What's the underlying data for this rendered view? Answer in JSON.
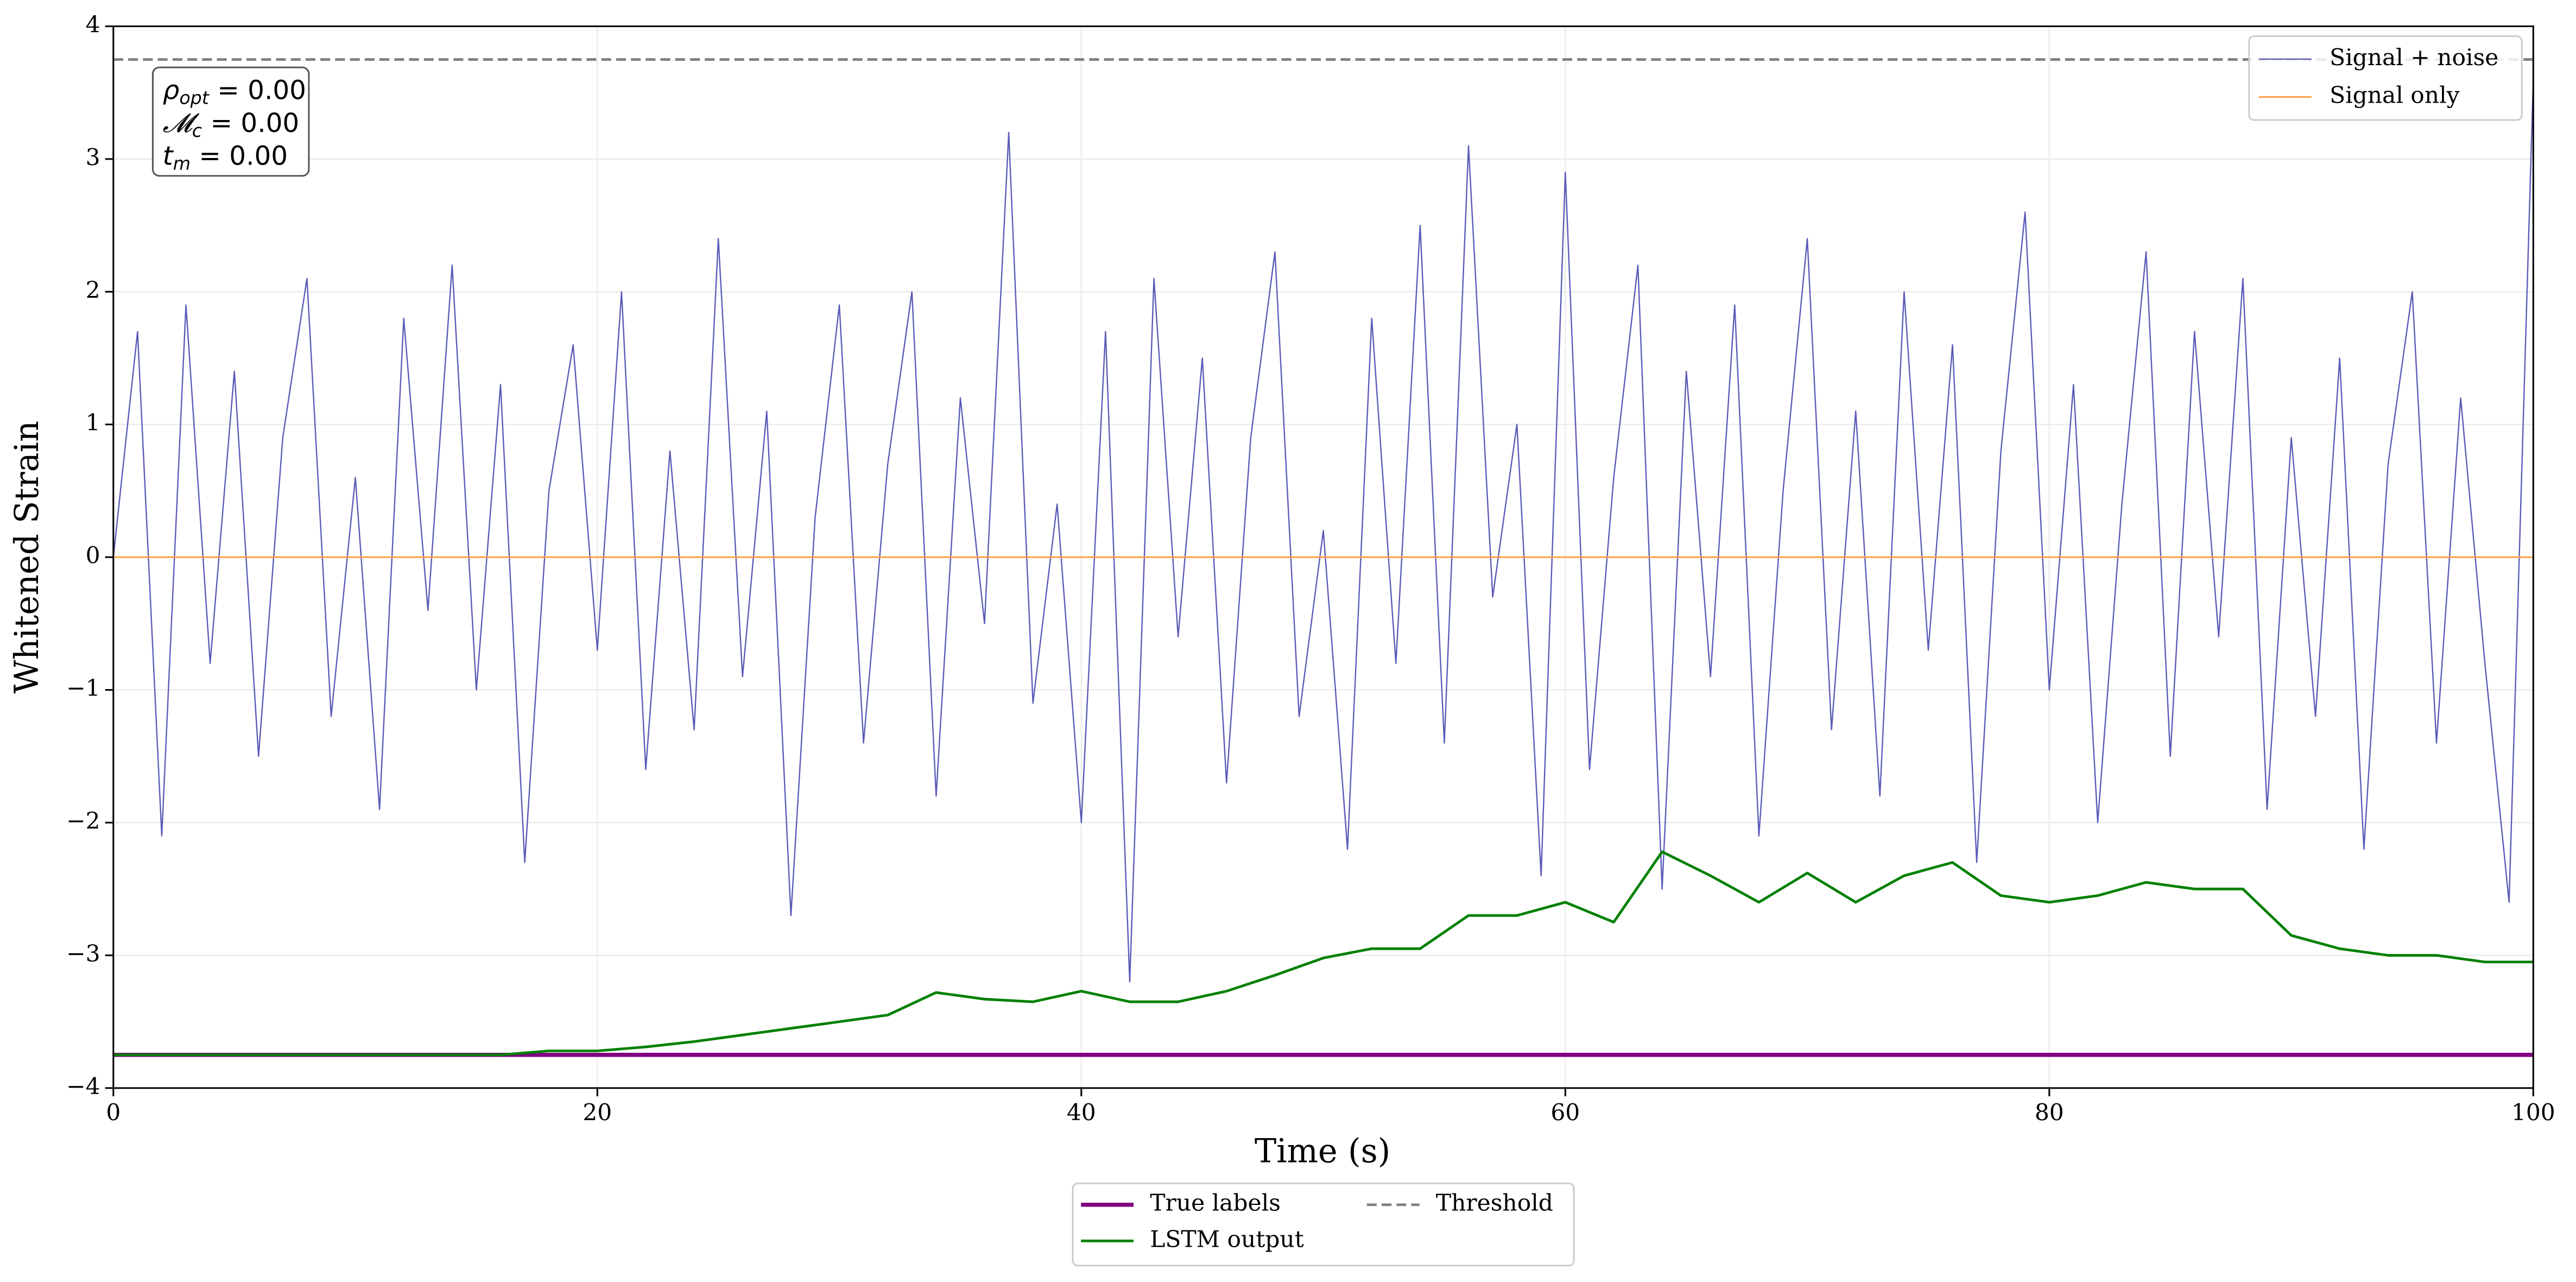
{
  "chart_data": {
    "type": "line",
    "xlabel": "Time (s)",
    "ylabel": "Whitened Strain",
    "xlim": [
      0,
      100
    ],
    "ylim": [
      -4,
      4
    ],
    "xticks": [
      0,
      20,
      40,
      60,
      80,
      100
    ],
    "yticks": [
      {
        "value": -4,
        "label": "−4"
      },
      {
        "value": -3,
        "label": "−3"
      },
      {
        "value": -2,
        "label": "−2"
      },
      {
        "value": -1,
        "label": "−1"
      },
      0,
      1,
      2,
      3,
      4
    ],
    "grid": true,
    "legend_columns_below": 2,
    "annotation": [
      {
        "symbol": "ρ",
        "subscript": "opt",
        "text": " = 0.00"
      },
      {
        "symbol": "𝓜",
        "subscript": "c",
        "text": " = 0.00"
      },
      {
        "symbol": "t",
        "subscript": "m",
        "text": " = 0.00"
      }
    ],
    "series": [
      {
        "name": "Signal + noise",
        "color": "#5c5cb8",
        "width": 0.8,
        "dash": false,
        "legend": "upper right",
        "x": [
          0,
          1,
          2,
          3,
          4,
          5,
          6,
          7,
          8,
          9,
          10,
          11,
          12,
          13,
          14,
          15,
          16,
          17,
          18,
          19,
          20,
          21,
          22,
          23,
          24,
          25,
          26,
          27,
          28,
          29,
          30,
          31,
          32,
          33,
          34,
          35,
          36,
          37,
          38,
          39,
          40,
          41,
          42,
          43,
          44,
          45,
          46,
          47,
          48,
          49,
          50,
          51,
          52,
          53,
          54,
          55,
          56,
          57,
          58,
          59,
          60,
          61,
          62,
          63,
          64,
          65,
          66,
          67,
          68,
          69,
          70,
          71,
          72,
          73,
          74,
          75,
          76,
          77,
          78,
          79,
          80,
          81,
          82,
          83,
          84,
          85,
          86,
          87,
          88,
          89,
          90,
          91,
          92,
          93,
          94,
          95,
          96,
          97,
          98,
          99,
          100
        ],
        "values": [
          0,
          1.7,
          -2.1,
          1.9,
          -0.8,
          1.4,
          -1.5,
          0.9,
          2.1,
          -1.2,
          0.6,
          -1.9,
          1.8,
          -0.4,
          2.2,
          -1.0,
          1.3,
          -2.3,
          0.5,
          1.6,
          -0.7,
          2.0,
          -1.6,
          0.8,
          -1.3,
          2.4,
          -0.9,
          1.1,
          -2.7,
          0.3,
          1.9,
          -1.4,
          0.7,
          2.0,
          -1.8,
          1.2,
          -0.5,
          3.2,
          -1.1,
          0.4,
          -2.0,
          1.7,
          -3.2,
          2.1,
          -0.6,
          1.5,
          -1.7,
          0.9,
          2.3,
          -1.2,
          0.2,
          -2.2,
          1.8,
          -0.8,
          2.5,
          -1.4,
          3.1,
          -0.3,
          1.0,
          -2.4,
          2.9,
          -1.6,
          0.6,
          2.2,
          -2.5,
          1.4,
          -0.9,
          1.9,
          -2.1,
          0.5,
          2.4,
          -1.3,
          1.1,
          -1.8,
          2.0,
          -0.7,
          1.6,
          -2.3,
          0.8,
          2.6,
          -1.0,
          1.3,
          -2.0,
          0.4,
          2.3,
          -1.5,
          1.7,
          -0.6,
          2.1,
          -1.9,
          0.9,
          -1.2,
          1.5,
          -2.2,
          0.7,
          2.0,
          -1.4,
          1.2,
          -0.8,
          -2.6,
          3.6
        ]
      },
      {
        "name": "Signal only",
        "color": "#ffa040",
        "width": 1,
        "dash": false,
        "legend": "upper right",
        "x": [
          0,
          100
        ],
        "values": [
          0,
          0
        ]
      },
      {
        "name": "True labels",
        "color": "#800080",
        "width": 2.5,
        "dash": false,
        "legend": "below",
        "x": [
          0,
          100
        ],
        "values": [
          -3.75,
          -3.75
        ]
      },
      {
        "name": "LSTM output",
        "color": "#008000",
        "width": 1.6,
        "dash": false,
        "legend": "below",
        "x": [
          0,
          2,
          4,
          6,
          8,
          10,
          12,
          14,
          16,
          18,
          20,
          22,
          24,
          26,
          28,
          30,
          32,
          34,
          36,
          38,
          40,
          42,
          44,
          46,
          48,
          50,
          52,
          54,
          56,
          58,
          60,
          62,
          64,
          66,
          68,
          70,
          72,
          74,
          76,
          78,
          80,
          82,
          84,
          86,
          88,
          90,
          92,
          94,
          96,
          98,
          100
        ],
        "values": [
          -3.75,
          -3.75,
          -3.75,
          -3.75,
          -3.75,
          -3.75,
          -3.75,
          -3.75,
          -3.75,
          -3.72,
          -3.72,
          -3.69,
          -3.65,
          -3.6,
          -3.55,
          -3.5,
          -3.45,
          -3.28,
          -3.33,
          -3.35,
          -3.27,
          -3.35,
          -3.35,
          -3.27,
          -3.15,
          -3.02,
          -2.95,
          -2.95,
          -2.7,
          -2.7,
          -2.6,
          -2.75,
          -2.22,
          -2.4,
          -2.6,
          -2.38,
          -2.6,
          -2.4,
          -2.3,
          -2.55,
          -2.6,
          -2.55,
          -2.45,
          -2.5,
          -2.5,
          -2.85,
          -2.95,
          -3.0,
          -3.0,
          -3.05,
          -3.05
        ]
      },
      {
        "name": "Threshold",
        "color": "#808080",
        "width": 1.6,
        "dash": true,
        "legend": "below",
        "x": [
          0,
          100
        ],
        "values": [
          3.75,
          3.75
        ]
      }
    ]
  }
}
